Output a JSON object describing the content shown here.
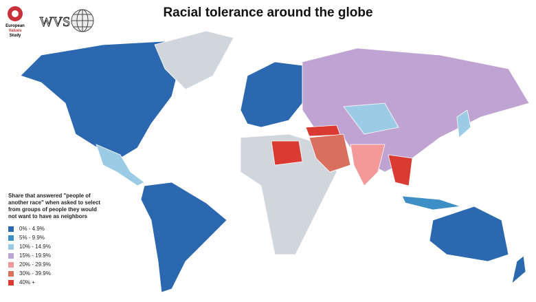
{
  "header": {
    "title": "Racial tolerance around the globe"
  },
  "logos": {
    "evs": [
      "European",
      "Values",
      "Study"
    ],
    "wvs": "WVS"
  },
  "legend": {
    "title": "Share that answered \"people of another race\" when asked to select from groups of people they would not want to have as neighbors",
    "items": [
      {
        "label": "0% - 4.9%",
        "color": "#2b68b0"
      },
      {
        "label": "5% - 9.9%",
        "color": "#3d8fc6"
      },
      {
        "label": "10% - 14.9%",
        "color": "#9ccbe6"
      },
      {
        "label": "15% - 19.9%",
        "color": "#bfa3d2"
      },
      {
        "label": "20% - 29.9%",
        "color": "#f3999a"
      },
      {
        "label": "30% - 39.9%",
        "color": "#d9705e"
      },
      {
        "label": "40% +",
        "color": "#d93a32"
      }
    ]
  }
}
